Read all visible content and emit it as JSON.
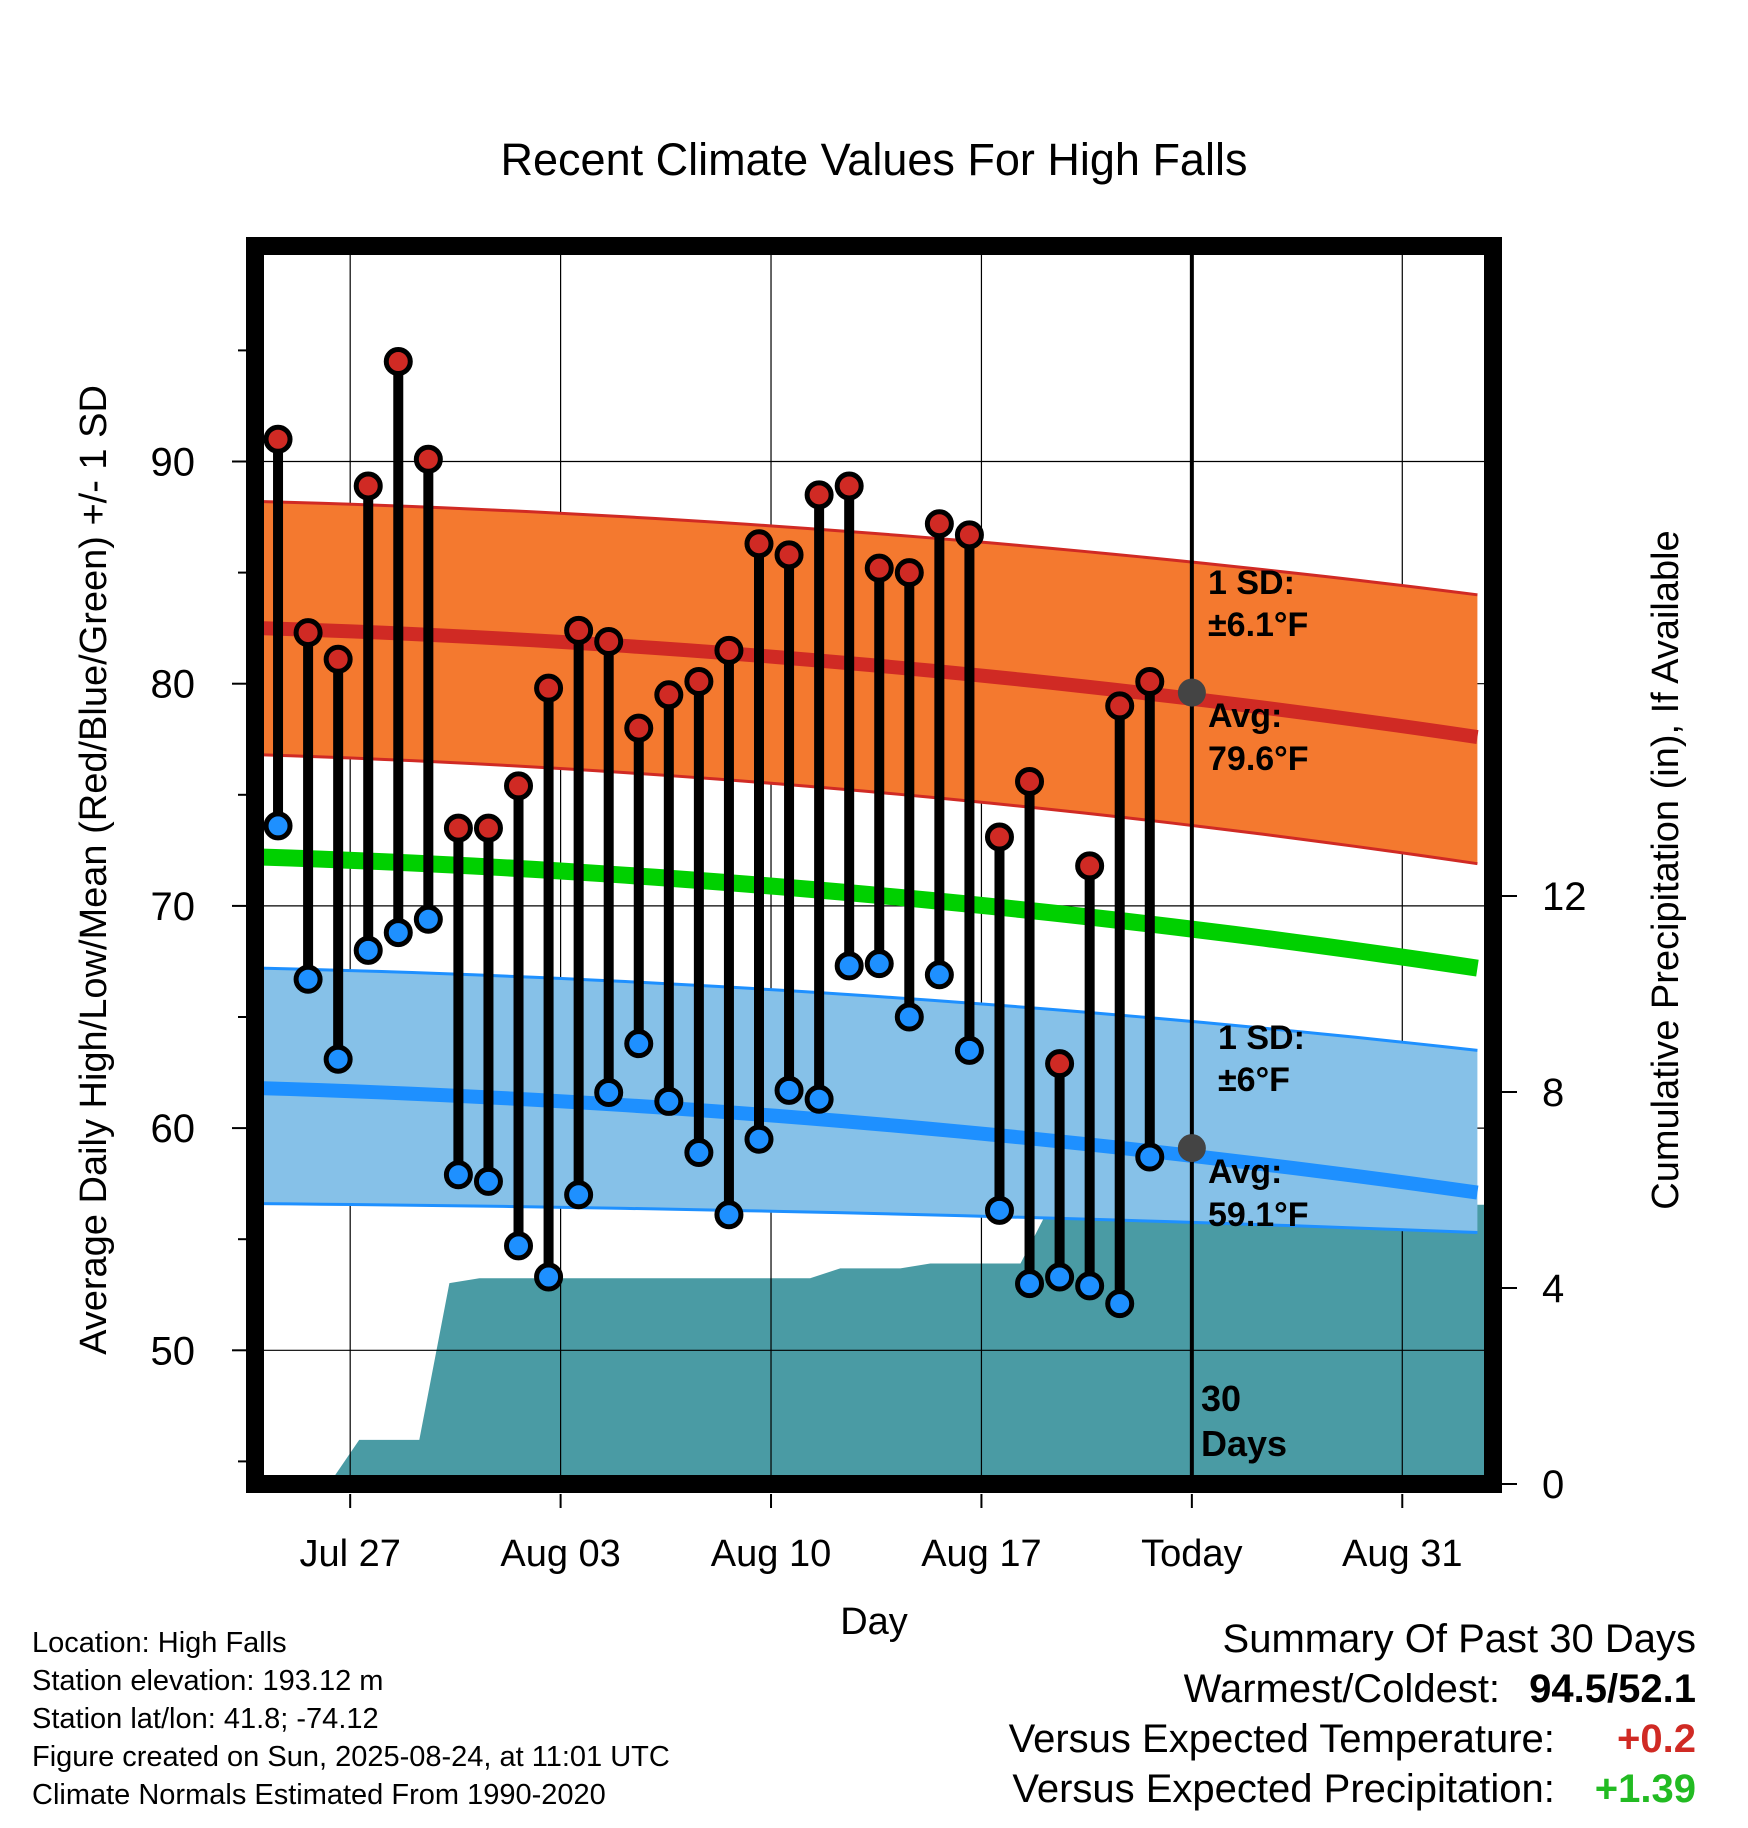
{
  "chart_data": {
    "type": "line",
    "title": "Recent Climate Values For High Falls",
    "xlabel": "Day",
    "ylabel": "Average Daily High/Low/Mean (Red/Blue/Green) +/- 1 SD",
    "y2label": "Cumulative Precipitation (in), If Available",
    "ylim": [
      44.5,
      99
    ],
    "y2lim": [
      0,
      16.3
    ],
    "x_ticks": [
      "Jul 27",
      "Aug 03",
      "Aug 10",
      "Aug 17",
      "Today",
      "Aug 31"
    ],
    "y_ticks": [
      50,
      60,
      70,
      80,
      90
    ],
    "y2_ticks": [
      0,
      4,
      8,
      12
    ],
    "grid": true,
    "today_label": "30 Days",
    "series": [
      {
        "name": "High",
        "color": "#d02a24",
        "values": [
          91.0,
          82.3,
          81.1,
          88.9,
          94.5,
          90.1,
          73.5,
          73.5,
          75.4,
          79.8,
          82.4,
          81.9,
          78.0,
          79.5,
          80.1,
          81.5,
          86.3,
          85.8,
          88.5,
          88.9,
          85.2,
          85.0,
          87.2,
          86.7,
          73.1,
          75.6,
          62.9,
          71.8,
          79.0,
          80.1
        ]
      },
      {
        "name": "Low",
        "color": "#1e90ff",
        "values": [
          73.6,
          66.7,
          63.1,
          68.0,
          68.8,
          69.4,
          57.9,
          57.6,
          54.7,
          53.3,
          57.0,
          61.6,
          63.8,
          61.2,
          58.9,
          56.1,
          59.5,
          61.7,
          61.3,
          67.3,
          67.4,
          65.0,
          66.9,
          63.5,
          56.3,
          53.0,
          53.3,
          52.9,
          52.1,
          58.7
        ]
      },
      {
        "name": "Avg High",
        "color": "#d02a24",
        "start": 82.5,
        "end": 77.6
      },
      {
        "name": "Avg Low",
        "color": "#1e90ff",
        "start": 61.8,
        "end": 57.1
      },
      {
        "name": "Avg Mean",
        "color": "#00d000",
        "start": 72.2,
        "end": 67.2
      },
      {
        "name": "High SD Band",
        "color": "#f4792f",
        "upper_start": 88.2,
        "upper_end": 84.0,
        "lower_start": 76.8,
        "lower_end": 71.9
      },
      {
        "name": "Low SD Band",
        "color": "#86c1e8",
        "upper_start": 67.2,
        "upper_end": 63.5,
        "lower_start": 56.6,
        "lower_end": 55.3
      },
      {
        "name": "Cumulative Precipitation",
        "color": "#4a9ba4",
        "values": [
          0,
          0,
          0,
          0.9,
          0.9,
          0.9,
          4.1,
          4.2,
          4.2,
          4.2,
          4.2,
          4.2,
          4.2,
          4.2,
          4.2,
          4.2,
          4.2,
          4.2,
          4.2,
          4.4,
          4.4,
          4.4,
          4.5,
          4.5,
          4.5,
          4.5,
          5.7,
          5.7,
          5.7,
          5.7,
          5.7,
          5.7,
          5.7,
          5.7,
          5.7,
          5.7,
          5.7,
          5.7,
          5.7,
          5.7,
          5.7,
          5.7
        ]
      }
    ],
    "annotations": {
      "high_sd": {
        "line1": "1 SD:",
        "line2": "±6.1°F"
      },
      "high_avg": {
        "line1": "Avg:",
        "line2": "79.6°F",
        "value": 79.6
      },
      "low_sd": {
        "line1": "1 SD:",
        "line2": "±6°F"
      },
      "low_avg": {
        "line1": "Avg:",
        "line2": "59.1°F",
        "value": 59.1
      }
    }
  },
  "info": {
    "location": "Location: High Falls",
    "elevation": "Station elevation: 193.12 m",
    "latlon": "Station lat/lon: 41.8; -74.12",
    "created": "Figure created on Sun, 2025-08-24, at 11:01 UTC",
    "normals": "Climate Normals Estimated From 1990-2020"
  },
  "summary": {
    "heading": "Summary Of Past 30 Days",
    "warmest_label": "Warmest/Coldest:",
    "warmest_value": "94.5/52.1",
    "temp_label": "Versus Expected Temperature:",
    "temp_value": "+0.2",
    "temp_color": "#d02a24",
    "precip_label": "Versus Expected Precipitation:",
    "precip_value": "+1.39",
    "precip_color": "#22bb22"
  }
}
